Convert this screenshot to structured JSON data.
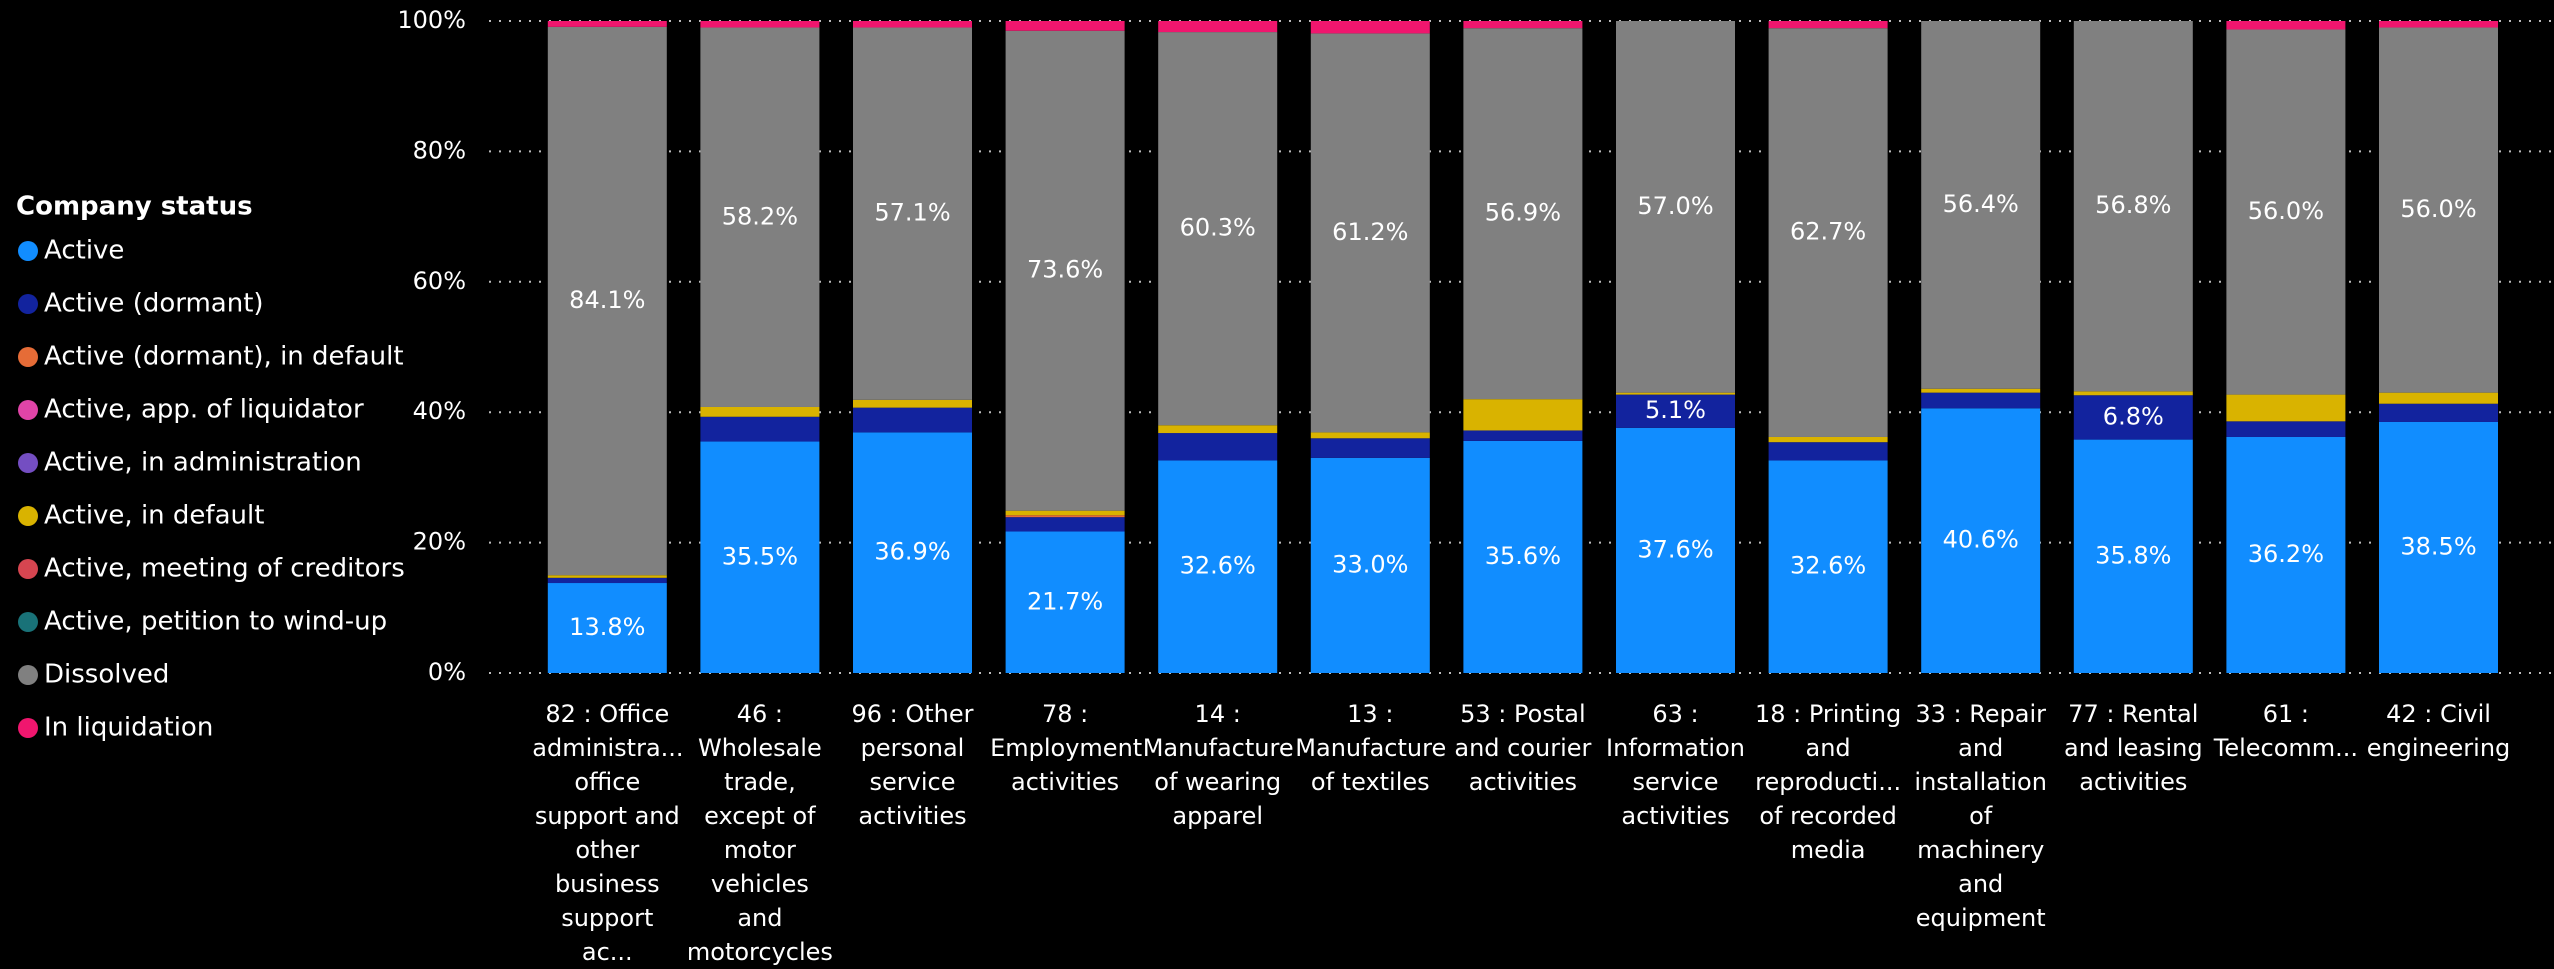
{
  "chart_data": {
    "type": "stacked_bar",
    "legend_title": "Company status",
    "legend_position": "left",
    "grid": true,
    "categories": [
      "82 : Office\nadministra...\noffice\nsupport and\nother\nbusiness\nsupport ac...",
      "46 :\nWholesale\ntrade,\nexcept of\nmotor\nvehicles and\nmotorcycles",
      "96 : Other\npersonal\nservice\nactivities",
      "78 :\nEmployment\nactivities",
      "14 :\nManufacture\nof wearing\napparel",
      "13 :\nManufacture\nof textiles",
      "53 : Postal\nand courier\nactivities",
      "63 :\nInformation\nservice\nactivities",
      "18 : Printing\nand\nreproducti...\nof recorded\nmedia",
      "33 : Repair\nand\ninstallation\nof\nmachinery\nand\nequipment",
      "77 : Rental\nand leasing\nactivities",
      "61 :\nTelecomm...",
      "42 : Civil\nengineering"
    ],
    "ylim": [
      0,
      100
    ],
    "yticks": [
      {
        "value": 0,
        "label": "0%"
      },
      {
        "value": 20,
        "label": "20%"
      },
      {
        "value": 40,
        "label": "40%"
      },
      {
        "value": 60,
        "label": "60%"
      },
      {
        "value": 80,
        "label": "80%"
      },
      {
        "value": 100,
        "label": "100%"
      }
    ],
    "series": [
      {
        "name": "Active",
        "color": "#118DFF",
        "values": [
          13.8,
          35.5,
          36.9,
          21.7,
          32.6,
          33.0,
          35.6,
          37.6,
          32.6,
          40.6,
          35.8,
          36.2,
          38.5
        ],
        "value_labels": [
          "13.8%",
          "35.5%",
          "36.9%",
          "21.7%",
          "32.6%",
          "33.0%",
          "35.6%",
          "37.6%",
          "32.6%",
          "40.6%",
          "35.8%",
          "36.2%",
          "38.5%"
        ]
      },
      {
        "name": "Active (dormant)",
        "color": "#12239E",
        "values": [
          0.8,
          3.8,
          3.8,
          2.2,
          4.2,
          3.0,
          1.6,
          5.1,
          2.8,
          2.4,
          6.8,
          2.4,
          2.8
        ],
        "value_labels": [
          null,
          null,
          null,
          null,
          null,
          null,
          null,
          "5.1%",
          null,
          null,
          "6.8%",
          null,
          null
        ]
      },
      {
        "name": "Active (dormant), in default",
        "color": "#E66C37",
        "values": [
          0,
          0,
          0,
          0.3,
          0,
          0,
          0,
          0,
          0,
          0,
          0,
          0,
          0
        ]
      },
      {
        "name": "Active, app. of liquidator",
        "color": "#E044A7",
        "values": [
          0,
          0,
          0,
          0,
          0,
          0,
          0,
          0,
          0,
          0,
          0,
          0,
          0
        ]
      },
      {
        "name": "Active, in administration",
        "color": "#744EC2",
        "values": [
          0,
          0,
          0,
          0,
          0,
          0,
          0,
          0,
          0,
          0,
          0,
          0,
          0
        ]
      },
      {
        "name": "Active, in default",
        "color": "#D9B300",
        "values": [
          0.4,
          1.5,
          1.2,
          0.7,
          1.2,
          0.9,
          4.8,
          0.3,
          0.8,
          0.6,
          0.6,
          4.1,
          1.7
        ]
      },
      {
        "name": "Active, meeting of creditors",
        "color": "#D64550",
        "values": [
          0,
          0,
          0,
          0,
          0,
          0,
          0,
          0,
          0,
          0,
          0,
          0,
          0
        ]
      },
      {
        "name": "Active, petition to wind-up",
        "color": "#197278",
        "values": [
          0,
          0,
          0,
          0,
          0,
          0,
          0,
          0,
          0,
          0,
          0,
          0,
          0
        ]
      },
      {
        "name": "Dissolved",
        "color": "#808080",
        "values": [
          84.1,
          58.2,
          57.1,
          73.6,
          60.3,
          61.2,
          56.9,
          57.0,
          62.7,
          56.4,
          56.8,
          56.0,
          56.0
        ],
        "value_labels": [
          "84.1%",
          "58.2%",
          "57.1%",
          "73.6%",
          "60.3%",
          "61.2%",
          "56.9%",
          "57.0%",
          "62.7%",
          "56.4%",
          "56.8%",
          "56.0%",
          "56.0%"
        ]
      },
      {
        "name": "In liquidation",
        "color": "#F0166E",
        "values": [
          0.9,
          1.0,
          1.0,
          1.5,
          1.7,
          1.9,
          1.1,
          0,
          1.1,
          0,
          0,
          1.3,
          1.0
        ]
      }
    ]
  }
}
